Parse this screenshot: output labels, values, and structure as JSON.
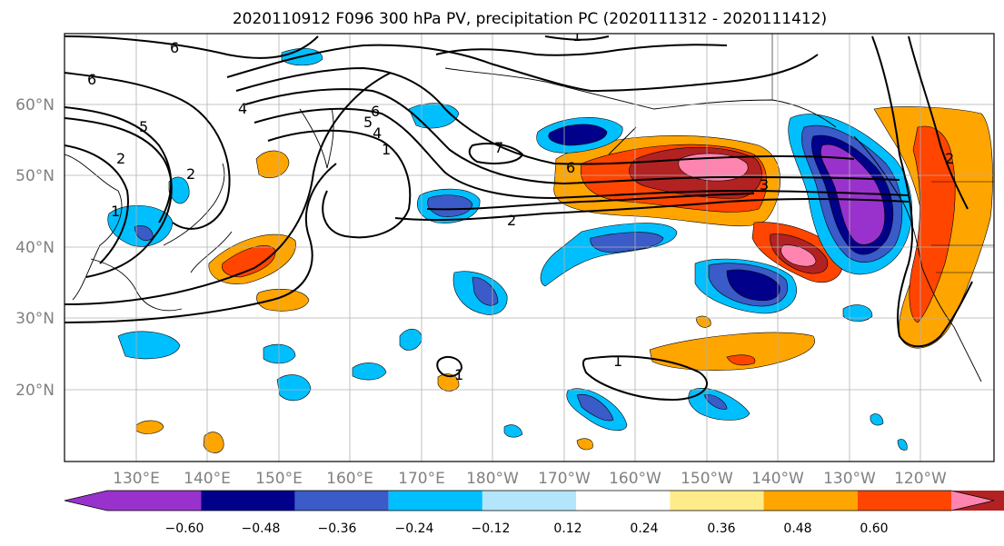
{
  "title": "2020110912 F096 300 hPa PV, precipitation PC (2020111312 - 2020111412)",
  "map": {
    "lon_labels": [
      "130°E",
      "140°E",
      "150°E",
      "160°E",
      "170°E",
      "180°W",
      "170°W",
      "160°W",
      "150°W",
      "140°W",
      "130°W",
      "120°W"
    ],
    "lat_labels": [
      "60°N",
      "50°N",
      "40°N",
      "30°N",
      "20°N"
    ],
    "pv_contour_labels": [
      "6",
      "6",
      "5",
      "4",
      "2",
      "1",
      "2",
      "1",
      "6",
      "5",
      "4",
      "7",
      "6",
      "2",
      "3",
      "1",
      "1",
      "1",
      "2"
    ]
  },
  "colorbar": {
    "tick_labels": [
      "−0.60",
      "−0.48",
      "−0.36",
      "−0.24",
      "−0.12",
      "0.12",
      "0.24",
      "0.36",
      "0.48",
      "0.60"
    ],
    "colors": [
      "#9932CC",
      "#00008B",
      "#3A5BC8",
      "#00BFFF",
      "#B3E5FC",
      "#FFFFFF",
      "#FFEB8A",
      "#FFA500",
      "#FF4500",
      "#B22222",
      "#FF85B0"
    ],
    "extend": "both"
  },
  "fill_colors": {
    "neg_060": "#9932CC",
    "neg_048": "#00008B",
    "neg_036": "#3A5BC8",
    "neg_024": "#00BFFF",
    "neg_012": "#B3E5FC",
    "pos_012": "#FFEB8A",
    "pos_024": "#FFA500",
    "pos_036": "#FF4500",
    "pos_048": "#B22222",
    "pos_060": "#FF85B0"
  }
}
